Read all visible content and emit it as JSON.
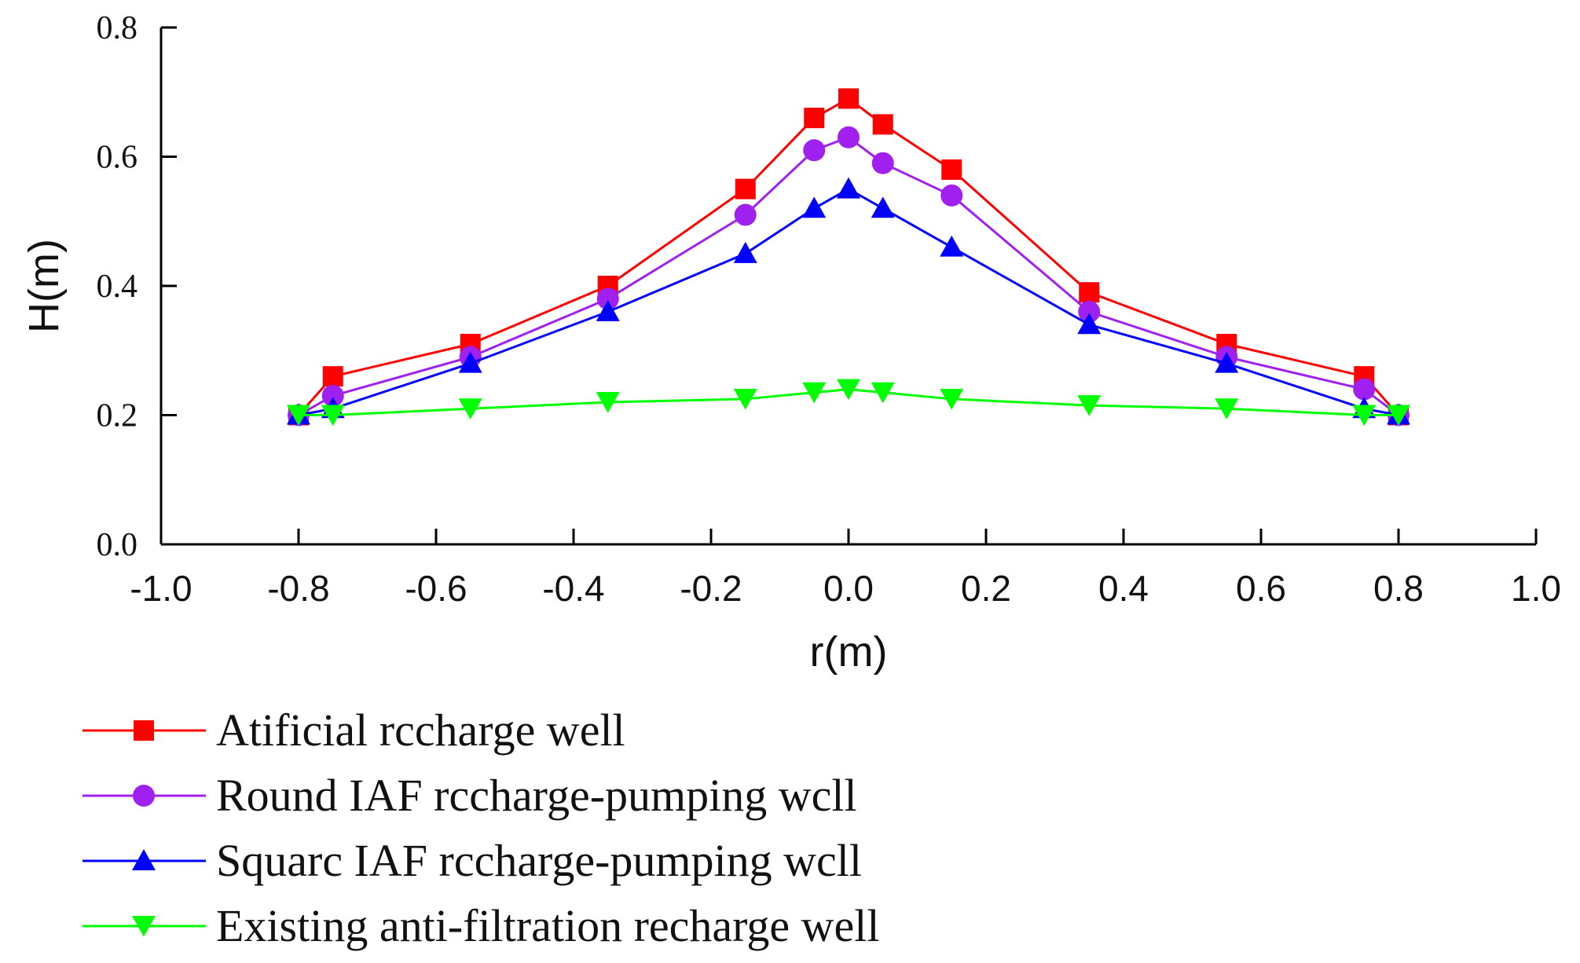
{
  "chart_data": {
    "type": "line",
    "title": "",
    "xlabel": "r(m)",
    "ylabel": "H(m)",
    "xlim": [
      -1.0,
      1.0
    ],
    "ylim": [
      0.0,
      0.8
    ],
    "x_ticks": [
      "-1.0",
      "-0.8",
      "-0.6",
      "-0.4",
      "-0.2",
      "0.0",
      "0.2",
      "0.4",
      "0.6",
      "0.8",
      "1.0"
    ],
    "y_ticks": [
      "0.0",
      "0.2",
      "0.4",
      "0.6",
      "0.8"
    ],
    "x": [
      -0.8,
      -0.75,
      -0.55,
      -0.35,
      -0.15,
      -0.05,
      0.0,
      0.05,
      0.15,
      0.35,
      0.55,
      0.75,
      0.8
    ],
    "grid": false,
    "legend_position": "bottom-left",
    "series": [
      {
        "name": "Atificial rccharge well",
        "color": "#ff0000",
        "marker": "square",
        "values": [
          0.2,
          0.26,
          0.31,
          0.4,
          0.55,
          0.66,
          0.69,
          0.65,
          0.58,
          0.39,
          0.31,
          0.26,
          0.2
        ]
      },
      {
        "name": "Round IAF rccharge-pumping wcll",
        "color": "#a020f0",
        "marker": "circle",
        "values": [
          0.2,
          0.23,
          0.29,
          0.38,
          0.51,
          0.61,
          0.63,
          0.59,
          0.54,
          0.36,
          0.29,
          0.24,
          0.2
        ]
      },
      {
        "name": "Squarc IAF rccharge-pumping wcll",
        "color": "#0000ff",
        "marker": "triangle-up",
        "values": [
          0.2,
          0.21,
          0.28,
          0.36,
          0.45,
          0.52,
          0.55,
          0.52,
          0.46,
          0.34,
          0.28,
          0.21,
          0.2
        ]
      },
      {
        "name": "Existing anti-filtration recharge well",
        "color": "#00ff00",
        "marker": "triangle-down",
        "values": [
          0.2,
          0.2,
          0.21,
          0.22,
          0.225,
          0.235,
          0.24,
          0.235,
          0.225,
          0.215,
          0.21,
          0.2,
          0.2
        ]
      }
    ]
  }
}
